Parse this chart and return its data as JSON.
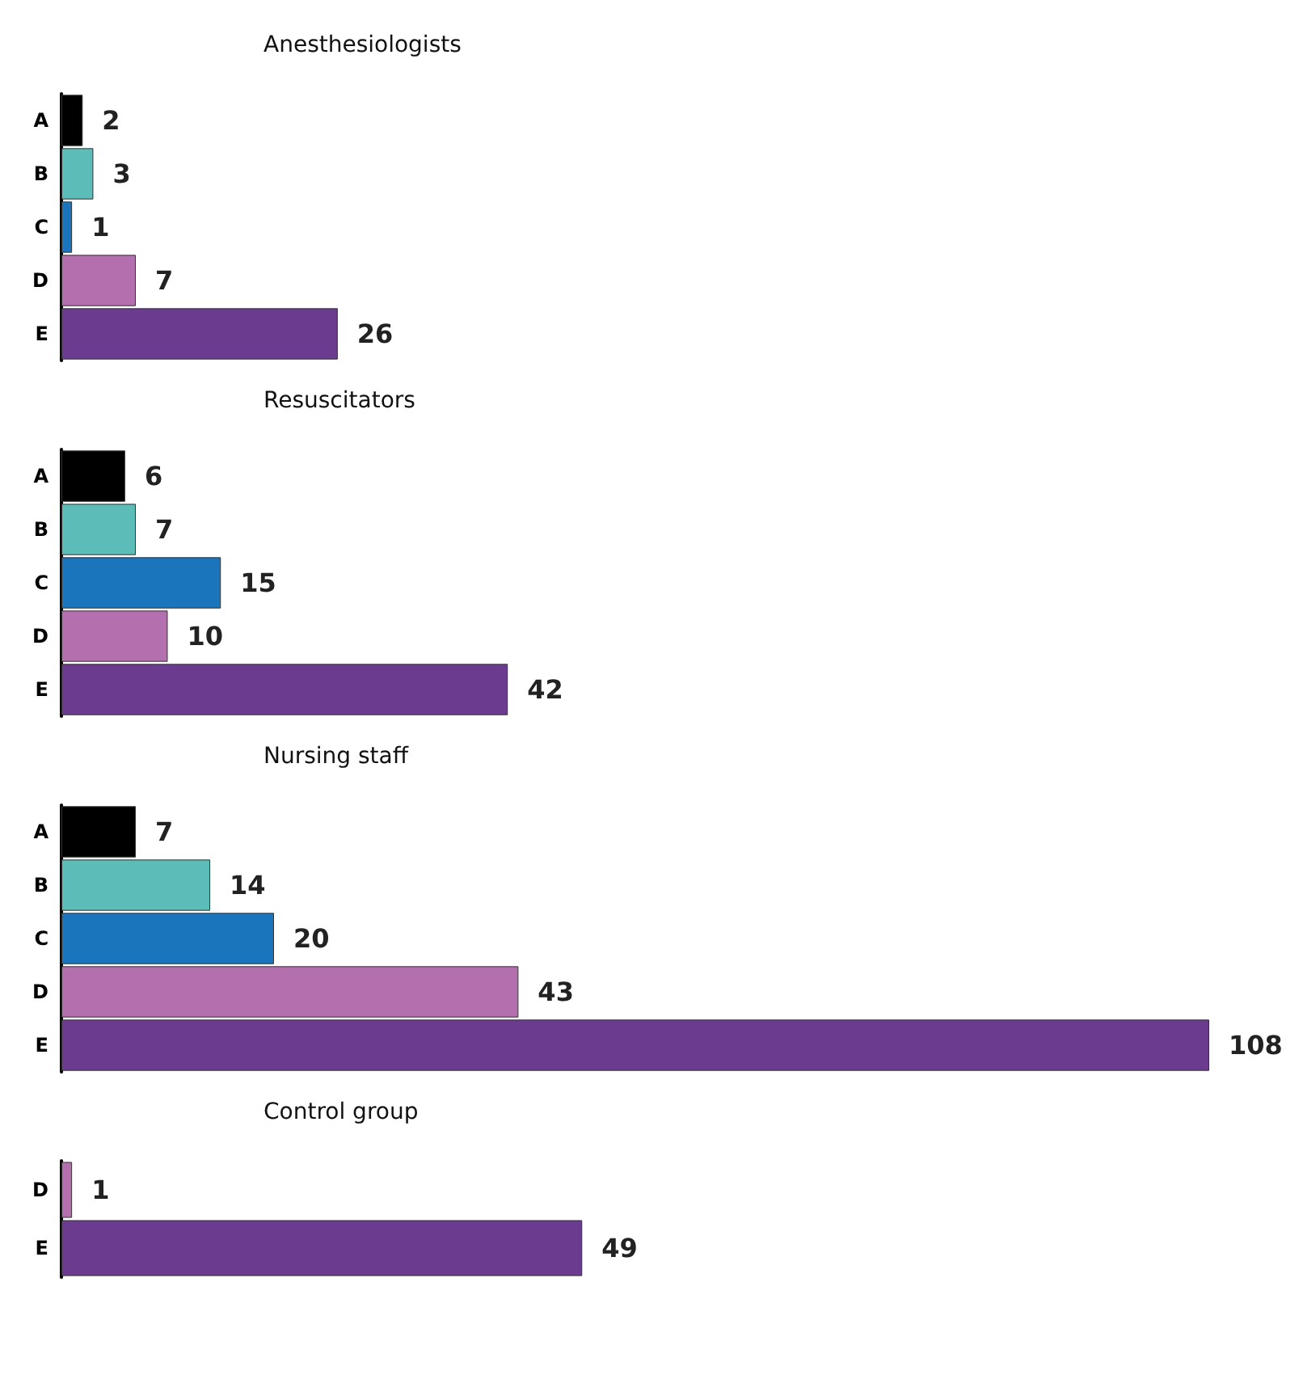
{
  "chart_data": [
    {
      "type": "bar",
      "orientation": "horizontal",
      "title": "Anesthesiologists",
      "categories": [
        "A",
        "B",
        "C",
        "D",
        "E"
      ],
      "values": [
        2,
        3,
        1,
        7,
        26
      ],
      "colors": [
        "#000000",
        "#5bbcb8",
        "#1b75bc",
        "#b36fae",
        "#6a3b8e"
      ],
      "data_labels": true
    },
    {
      "type": "bar",
      "orientation": "horizontal",
      "title": "Resuscitators",
      "categories": [
        "A",
        "B",
        "C",
        "D",
        "E"
      ],
      "values": [
        6,
        7,
        15,
        10,
        42
      ],
      "colors": [
        "#000000",
        "#5bbcb8",
        "#1b75bc",
        "#b36fae",
        "#6a3b8e"
      ],
      "data_labels": true
    },
    {
      "type": "bar",
      "orientation": "horizontal",
      "title": "Nursing staff",
      "categories": [
        "A",
        "B",
        "C",
        "D",
        "E"
      ],
      "values": [
        7,
        14,
        20,
        43,
        108
      ],
      "colors": [
        "#000000",
        "#5bbcb8",
        "#1b75bc",
        "#b36fae",
        "#6a3b8e"
      ],
      "data_labels": true
    },
    {
      "type": "bar",
      "orientation": "horizontal",
      "title": "Control group",
      "categories": [
        "D",
        "E"
      ],
      "values": [
        1,
        49
      ],
      "colors": [
        "#b36fae",
        "#6a3b8e"
      ],
      "data_labels": true
    }
  ]
}
